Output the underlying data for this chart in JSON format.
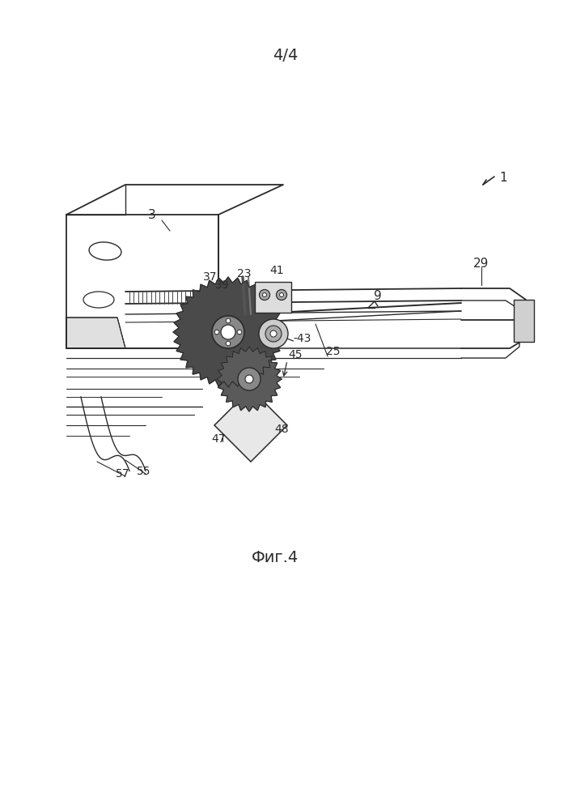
{
  "title_top": "4/4",
  "caption": "Фиг.4",
  "background_color": "#ffffff",
  "line_color": "#2a2a2a",
  "figsize": [
    7.07,
    10.0
  ],
  "dpi": 100,
  "labels": [
    [
      "1",
      620,
      218
    ],
    [
      "3",
      188,
      272
    ],
    [
      "9",
      468,
      368
    ],
    [
      "23",
      300,
      345
    ],
    [
      "25",
      410,
      438
    ],
    [
      "29",
      592,
      330
    ],
    [
      "37",
      258,
      348
    ],
    [
      "39",
      272,
      352
    ],
    [
      "41",
      342,
      338
    ],
    [
      "-43",
      372,
      420
    ],
    [
      "45",
      368,
      440
    ],
    [
      "47",
      270,
      540
    ],
    [
      "48",
      345,
      532
    ],
    [
      "55",
      178,
      588
    ],
    [
      "57",
      152,
      592
    ]
  ]
}
